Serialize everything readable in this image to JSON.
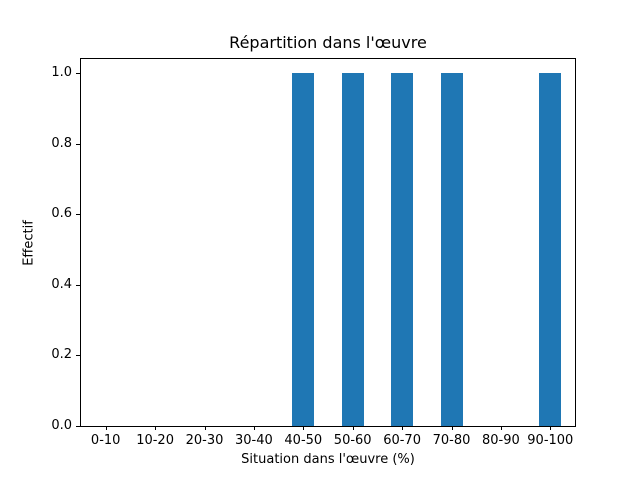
{
  "chart_data": {
    "type": "bar",
    "title": "Répartition dans l'œuvre",
    "xlabel": "Situation dans l'œuvre (%)",
    "ylabel": "Effectif",
    "categories": [
      "0-10",
      "10-20",
      "20-30",
      "30-40",
      "40-50",
      "50-60",
      "60-70",
      "70-80",
      "80-90",
      "90-100"
    ],
    "values": [
      0,
      0,
      0,
      0,
      1,
      1,
      1,
      1,
      0,
      1
    ],
    "ytick_labels": [
      "0.0",
      "0.2",
      "0.4",
      "0.6",
      "0.8",
      "1.0"
    ],
    "ytick_values": [
      0.0,
      0.2,
      0.4,
      0.6,
      0.8,
      1.0
    ],
    "ylim": [
      0,
      1.04
    ],
    "bar_color": "#1f77b4",
    "grid": false,
    "legend_position": "none",
    "background_color": "#ffffff"
  }
}
